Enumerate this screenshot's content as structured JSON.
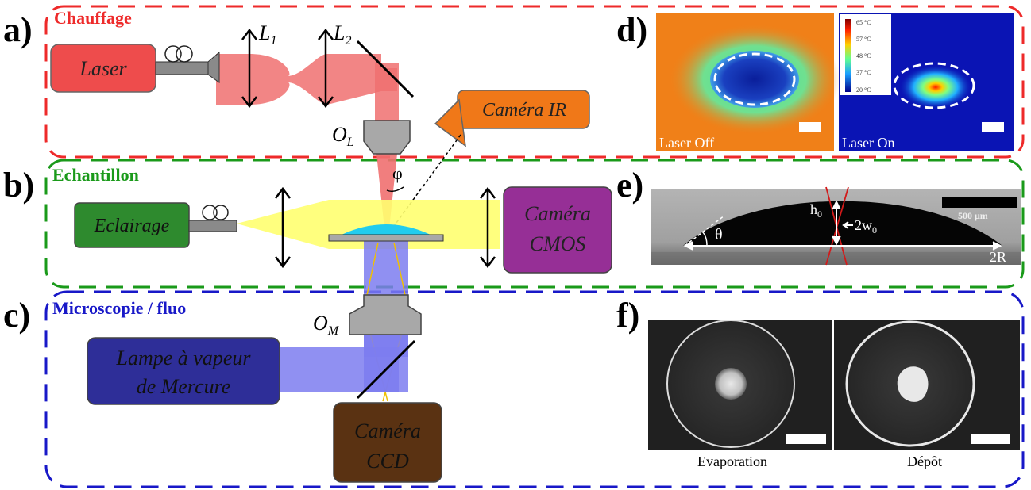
{
  "panels": {
    "a": {
      "letter": "a)",
      "title": "Chauffage",
      "color": "#ee2a2a"
    },
    "b": {
      "letter": "b)",
      "title": "Echantillon",
      "color": "#1a9a1a"
    },
    "c": {
      "letter": "c)",
      "title": "Microscopie / fluo",
      "color": "#1818c8"
    },
    "d": {
      "letter": "d)"
    },
    "e": {
      "letter": "e)"
    },
    "f": {
      "letter": "f)"
    }
  },
  "components": {
    "laser": "Laser",
    "lens1": {
      "main": "L",
      "sub": "1"
    },
    "lens2": {
      "main": "L",
      "sub": "2"
    },
    "objective_l": {
      "main": "O",
      "sub": "L"
    },
    "camera_ir": "Caméra IR",
    "phi": "φ",
    "eclairage": "Eclairage",
    "camera_cmos_1": "Caméra",
    "camera_cmos_2": "CMOS",
    "objective_m": {
      "main": "O",
      "sub": "M"
    },
    "lamp_1": "Lampe à vapeur",
    "lamp_2": "de Mercure",
    "camera_ccd_1": "Caméra",
    "camera_ccd_2": "CCD"
  },
  "thermal": {
    "off_label": "Laser Off",
    "on_label": "Laser On",
    "colorbar_ticks": [
      "65 °C",
      "57 °C",
      "48 °C",
      "37 °C",
      "20 °C"
    ]
  },
  "droplet": {
    "h0": {
      "main": "h",
      "sub": "0"
    },
    "w0": {
      "main": "2w",
      "sub": "0"
    },
    "theta": "θ",
    "radius": "2R",
    "scale": "500 μm"
  },
  "deposits": {
    "left_caption": "Evaporation",
    "right_caption": "Dépôt"
  },
  "colors": {
    "laser_box": "#ee4c4c",
    "laser_beam": "#f07070",
    "camera_ir": "#f07818",
    "eclairage": "#2e8a2e",
    "light": "#ffff70",
    "camera_cmos": "#962f96",
    "lamp": "#2e2e98",
    "uv_beam": "#7c7cf0",
    "camera_ccd": "#5a3212",
    "droplet": "#22ccee",
    "grey": "#a8a8a8"
  }
}
